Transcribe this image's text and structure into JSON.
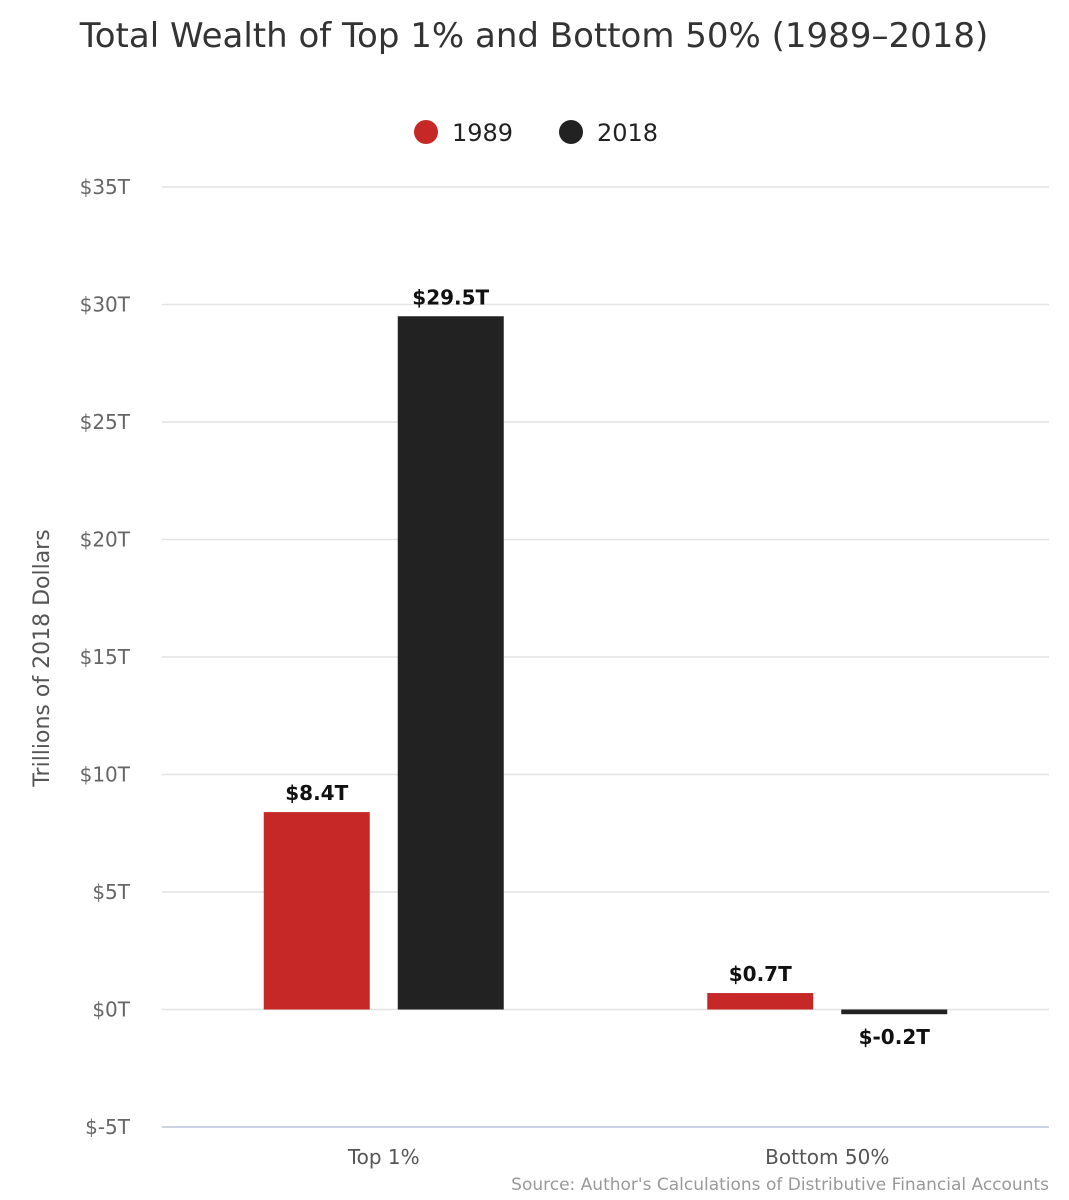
{
  "chart_data": {
    "type": "bar",
    "title": "Total Wealth of Top 1% and Bottom 50% (1989–2018)",
    "ylabel": "Trillions of 2018 Dollars",
    "xlabel": "",
    "categories": [
      "Top 1%",
      "Bottom 50%"
    ],
    "series": [
      {
        "name": "1989",
        "color": "#c62828",
        "values": [
          8.4,
          0.7
        ],
        "labels": [
          "$8.4T",
          "$0.7T"
        ]
      },
      {
        "name": "2018",
        "color": "#222222",
        "values": [
          29.5,
          -0.2
        ],
        "labels": [
          "$29.5T",
          "$-0.2T"
        ]
      }
    ],
    "ylim": [
      -5,
      35
    ],
    "yticks": [
      35,
      30,
      25,
      20,
      15,
      10,
      5,
      0,
      -5
    ],
    "ytick_labels": [
      "$35T",
      "$30T",
      "$25T",
      "$20T",
      "$15T",
      "$10T",
      "$5T",
      "$0T",
      "$-5T"
    ],
    "grid": true,
    "legend_position": "top-center",
    "source": "Source: Author's Calculations of Distributive Financial Accounts"
  }
}
